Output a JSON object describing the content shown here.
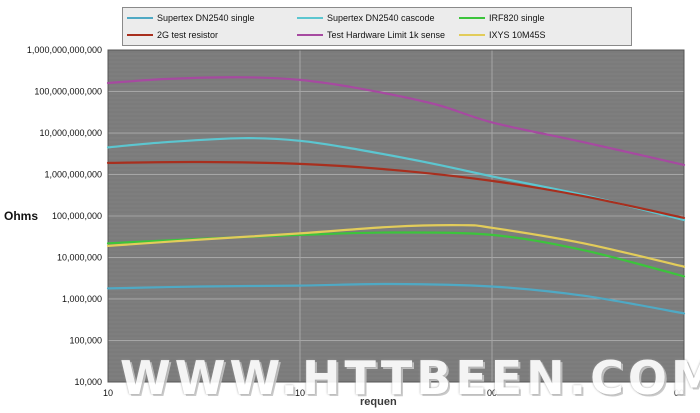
{
  "chart_data": {
    "type": "line",
    "title": "",
    "ylabel": "Ohms",
    "xlabel": "requen",
    "x_scale": "log",
    "y_scale": "log",
    "xlim": [
      10,
      10000
    ],
    "ylim": [
      10000,
      1000000000000
    ],
    "grid": true,
    "legend_placement": "top",
    "y_ticks": [
      {
        "value": 10000,
        "label": "10,000"
      },
      {
        "value": 100000,
        "label": "100,000"
      },
      {
        "value": 1000000,
        "label": "1,000,000"
      },
      {
        "value": 10000000,
        "label": "10,000,000"
      },
      {
        "value": 100000000,
        "label": "100,000,000"
      },
      {
        "value": 1000000000,
        "label": "1,000,000,000"
      },
      {
        "value": 10000000000,
        "label": "10,000,000,000"
      },
      {
        "value": 100000000000,
        "label": "100,000,000,000"
      },
      {
        "value": 1000000000000,
        "label": "1,000,000,000,000"
      }
    ],
    "x_ticks": [
      {
        "value": 10,
        "label": "10"
      },
      {
        "value": 100,
        "label": "10"
      },
      {
        "value": 1000,
        "label": "00"
      },
      {
        "value": 10000,
        "label": "00"
      }
    ],
    "series": [
      {
        "name": "Supertex DN2540 single",
        "color": "#4fa9c4",
        "x": [
          10,
          30,
          100,
          300,
          1000,
          3000,
          10000
        ],
        "y": [
          1800000,
          2000000,
          2100000,
          2300000,
          2000000,
          1200000,
          450000
        ]
      },
      {
        "name": "Supertex DN2540 cascode",
        "color": "#5cc6d0",
        "x": [
          10,
          20,
          50,
          100,
          200,
          500,
          1000,
          3000,
          10000
        ],
        "y": [
          4500000000,
          6000000000,
          7500000000,
          6500000000,
          4000000000,
          1800000000,
          900000000,
          320000000,
          80000000
        ]
      },
      {
        "name": "IRF820 single",
        "color": "#3cc43c",
        "x": [
          10,
          30,
          100,
          300,
          1000,
          3000,
          10000
        ],
        "y": [
          22000000,
          28000000,
          35000000,
          40000000,
          35000000,
          15000000,
          3500000
        ]
      },
      {
        "name": "2G test resistor",
        "color": "#a82f1e",
        "x": [
          10,
          30,
          100,
          300,
          1000,
          3000,
          10000
        ],
        "y": [
          1900000000,
          2000000000,
          1800000000,
          1300000000,
          700000000,
          300000000,
          90000000
        ]
      },
      {
        "name": "Test Hardware Limit 1k sense",
        "color": "#a64aa0",
        "x": [
          10,
          20,
          50,
          100,
          200,
          500,
          1000,
          3000,
          10000
        ],
        "y": [
          160000000000,
          200000000000,
          220000000000,
          190000000000,
          120000000000,
          50000000000,
          18000000000,
          6000000000,
          1700000000
        ]
      },
      {
        "name": "IXYS 10M45S",
        "color": "#e2cc5a",
        "x": [
          10,
          30,
          100,
          300,
          700,
          1000,
          3000,
          10000
        ],
        "y": [
          19000000,
          27000000,
          38000000,
          55000000,
          60000000,
          52000000,
          22000000,
          6000000
        ]
      }
    ]
  },
  "legend": {
    "items": [
      {
        "label": "Supertex DN2540 single",
        "color": "#4fa9c4"
      },
      {
        "label": "Supertex DN2540 cascode",
        "color": "#5cc6d0"
      },
      {
        "label": "IRF820 single",
        "color": "#3cc43c"
      },
      {
        "label": "2G test resistor",
        "color": "#a82f1e"
      },
      {
        "label": "Test Hardware Limit 1k sense",
        "color": "#a64aa0"
      },
      {
        "label": "IXYS 10M45S",
        "color": "#e2cc5a"
      }
    ]
  },
  "watermark": {
    "text": "WWW.HTTBEEN.COM"
  },
  "colors": {
    "plot_background": "#7b7b7b",
    "gridline": "#8f8f8f"
  }
}
